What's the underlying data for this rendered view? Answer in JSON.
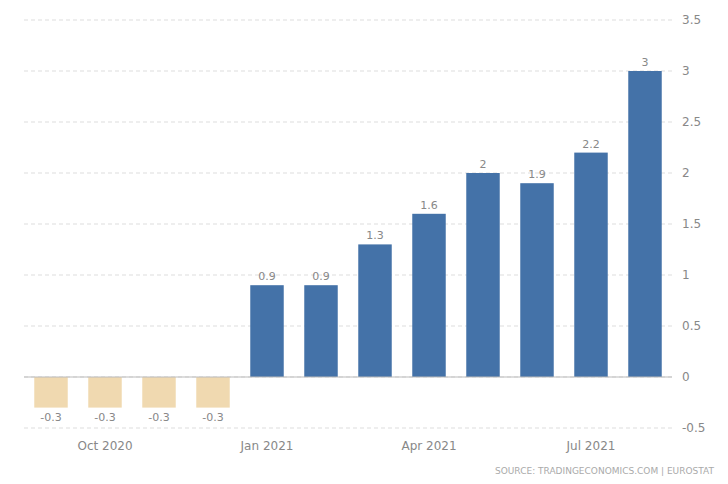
{
  "chart_data": {
    "type": "bar",
    "categories": [
      null,
      "Oct 2020",
      null,
      null,
      "Jan 2021",
      null,
      null,
      "Apr 2021",
      null,
      null,
      "Jul 2021",
      null
    ],
    "values": [
      -0.3,
      -0.3,
      -0.3,
      -0.3,
      0.9,
      0.9,
      1.3,
      1.6,
      2.0,
      1.9,
      2.2,
      3.0
    ],
    "value_labels": [
      "-0.3",
      "-0.3",
      "-0.3",
      "-0.3",
      "0.9",
      "0.9",
      "1.3",
      "1.6",
      "2",
      "1.9",
      "2.2",
      "3"
    ],
    "colors": [
      "#f0d9b0",
      "#f0d9b0",
      "#f0d9b0",
      "#f0d9b0",
      "#4472a8",
      "#4472a8",
      "#4472a8",
      "#4472a8",
      "#4472a8",
      "#4472a8",
      "#4472a8",
      "#4472a8"
    ],
    "ylim": [
      -0.5,
      3.5
    ],
    "yticks": [
      -0.5,
      0,
      0.5,
      1,
      1.5,
      2,
      2.5,
      3,
      3.5
    ],
    "grid": true,
    "data_labels": true,
    "annotations": [
      "SOURCE: TRADINGECONOMICS.COM | EUROSTAT"
    ]
  }
}
